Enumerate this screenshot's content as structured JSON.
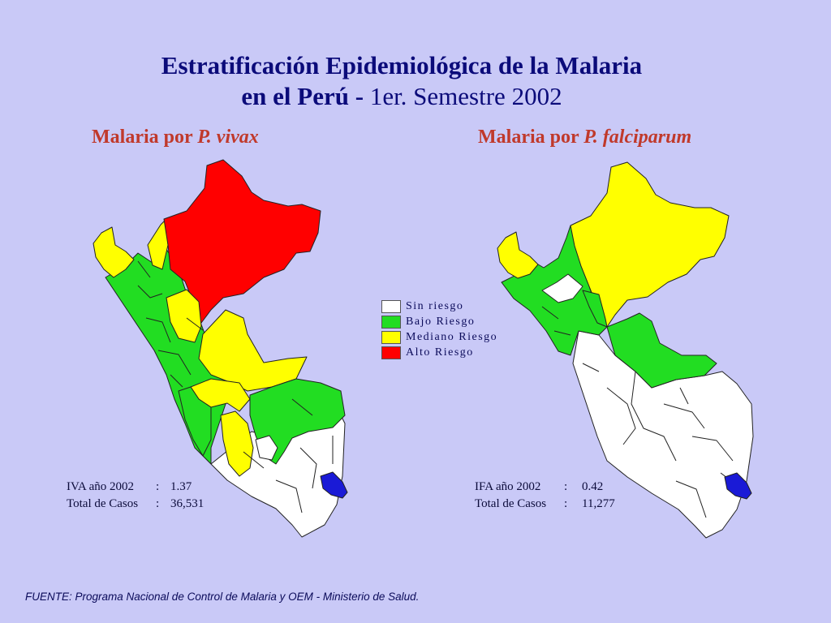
{
  "title": {
    "line1": "Estratificación Epidemiológica de la Malaria",
    "line2_bold": "en el Perú -",
    "line2_normal": " 1er. Semestre 2002"
  },
  "maps": {
    "vivax": {
      "heading_prefix": "Malaria por ",
      "heading_species": "P. vivax",
      "stat_label": "IVA año 2002",
      "stat_value": "1.37",
      "cases_label": "Total de Casos",
      "cases_value": "36,531"
    },
    "falciparum": {
      "heading_prefix": "Malaria por ",
      "heading_species": "P. falciparum",
      "stat_label": "IFA año 2002",
      "stat_value": "0.42",
      "cases_label": "Total de Casos",
      "cases_value": "11,277"
    }
  },
  "legend": {
    "items": [
      {
        "label": "Sin riesgo",
        "color": "#ffffff"
      },
      {
        "label": "Bajo Riesgo",
        "color": "#22dd22"
      },
      {
        "label": "Mediano Riesgo",
        "color": "#ffff00"
      },
      {
        "label": "Alto Riesgo",
        "color": "#ff0000"
      }
    ]
  },
  "colors": {
    "background": "#c9c9f7",
    "lake": "#1a1ad6",
    "title": "#0b0b7a",
    "heading": "#c0392b"
  },
  "footer": "FUENTE: Programa Nacional de Control de Malaria y OEM - Ministerio de Salud."
}
